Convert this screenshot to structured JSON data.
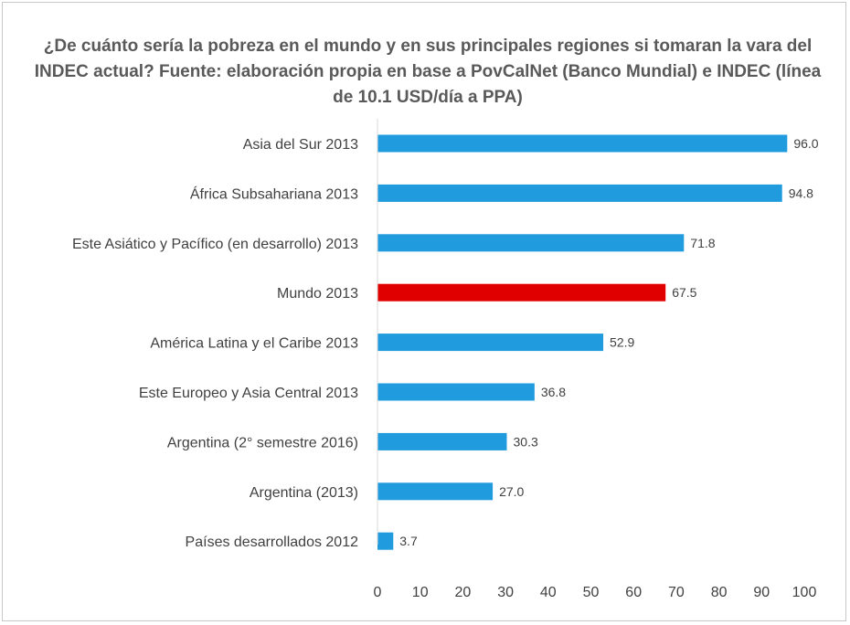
{
  "chart_data": {
    "type": "bar",
    "orientation": "horizontal",
    "title": "¿De cuánto sería la pobreza en el mundo y en sus principales regiones si tomaran la vara del INDEC actual? Fuente: elaboración propia en base a PovCalNet (Banco Mundial) e INDEC (línea de 10.1 USD/día a PPA)",
    "categories": [
      "Asia del Sur 2013",
      "África Subsahariana 2013",
      "Este Asiático y Pacífico (en desarrollo) 2013",
      "Mundo 2013",
      "América Latina y el Caribe 2013",
      "Este Europeo y Asia Central 2013",
      "Argentina (2° semestre 2016)",
      "Argentina (2013)",
      "Países desarrollados 2012"
    ],
    "values": [
      96.0,
      94.8,
      71.8,
      67.5,
      52.9,
      36.8,
      30.3,
      27.0,
      3.7
    ],
    "value_labels": [
      "96.0",
      "94.8",
      "71.8",
      "67.5",
      "52.9",
      "36.8",
      "30.3",
      "27.0",
      "3.7"
    ],
    "bar_colors": [
      "#1f9bde",
      "#1f9bde",
      "#1f9bde",
      "#e00000",
      "#1f9bde",
      "#1f9bde",
      "#1f9bde",
      "#1f9bde",
      "#1f9bde"
    ],
    "xlim": [
      0,
      100
    ],
    "xticks": [
      0,
      10,
      20,
      30,
      40,
      50,
      60,
      70,
      80,
      90,
      100
    ],
    "grid": false,
    "legend": "none"
  }
}
